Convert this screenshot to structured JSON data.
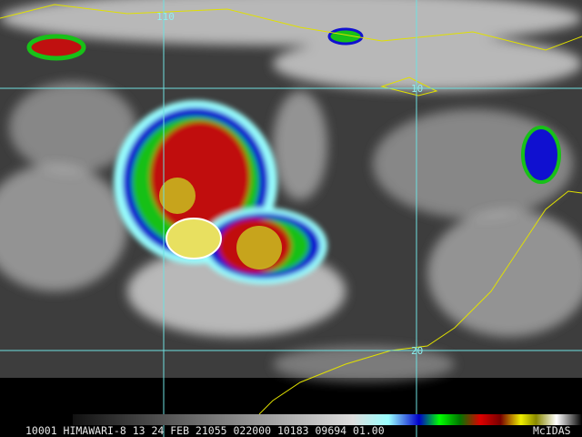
{
  "image": {
    "grid_labels": [
      "110",
      "10",
      "20"
    ],
    "info_line": "10001 HIMAWARI-8 13 24 FEB 21055 022000 10183 09694 01.00",
    "logo": "McIDAS"
  }
}
